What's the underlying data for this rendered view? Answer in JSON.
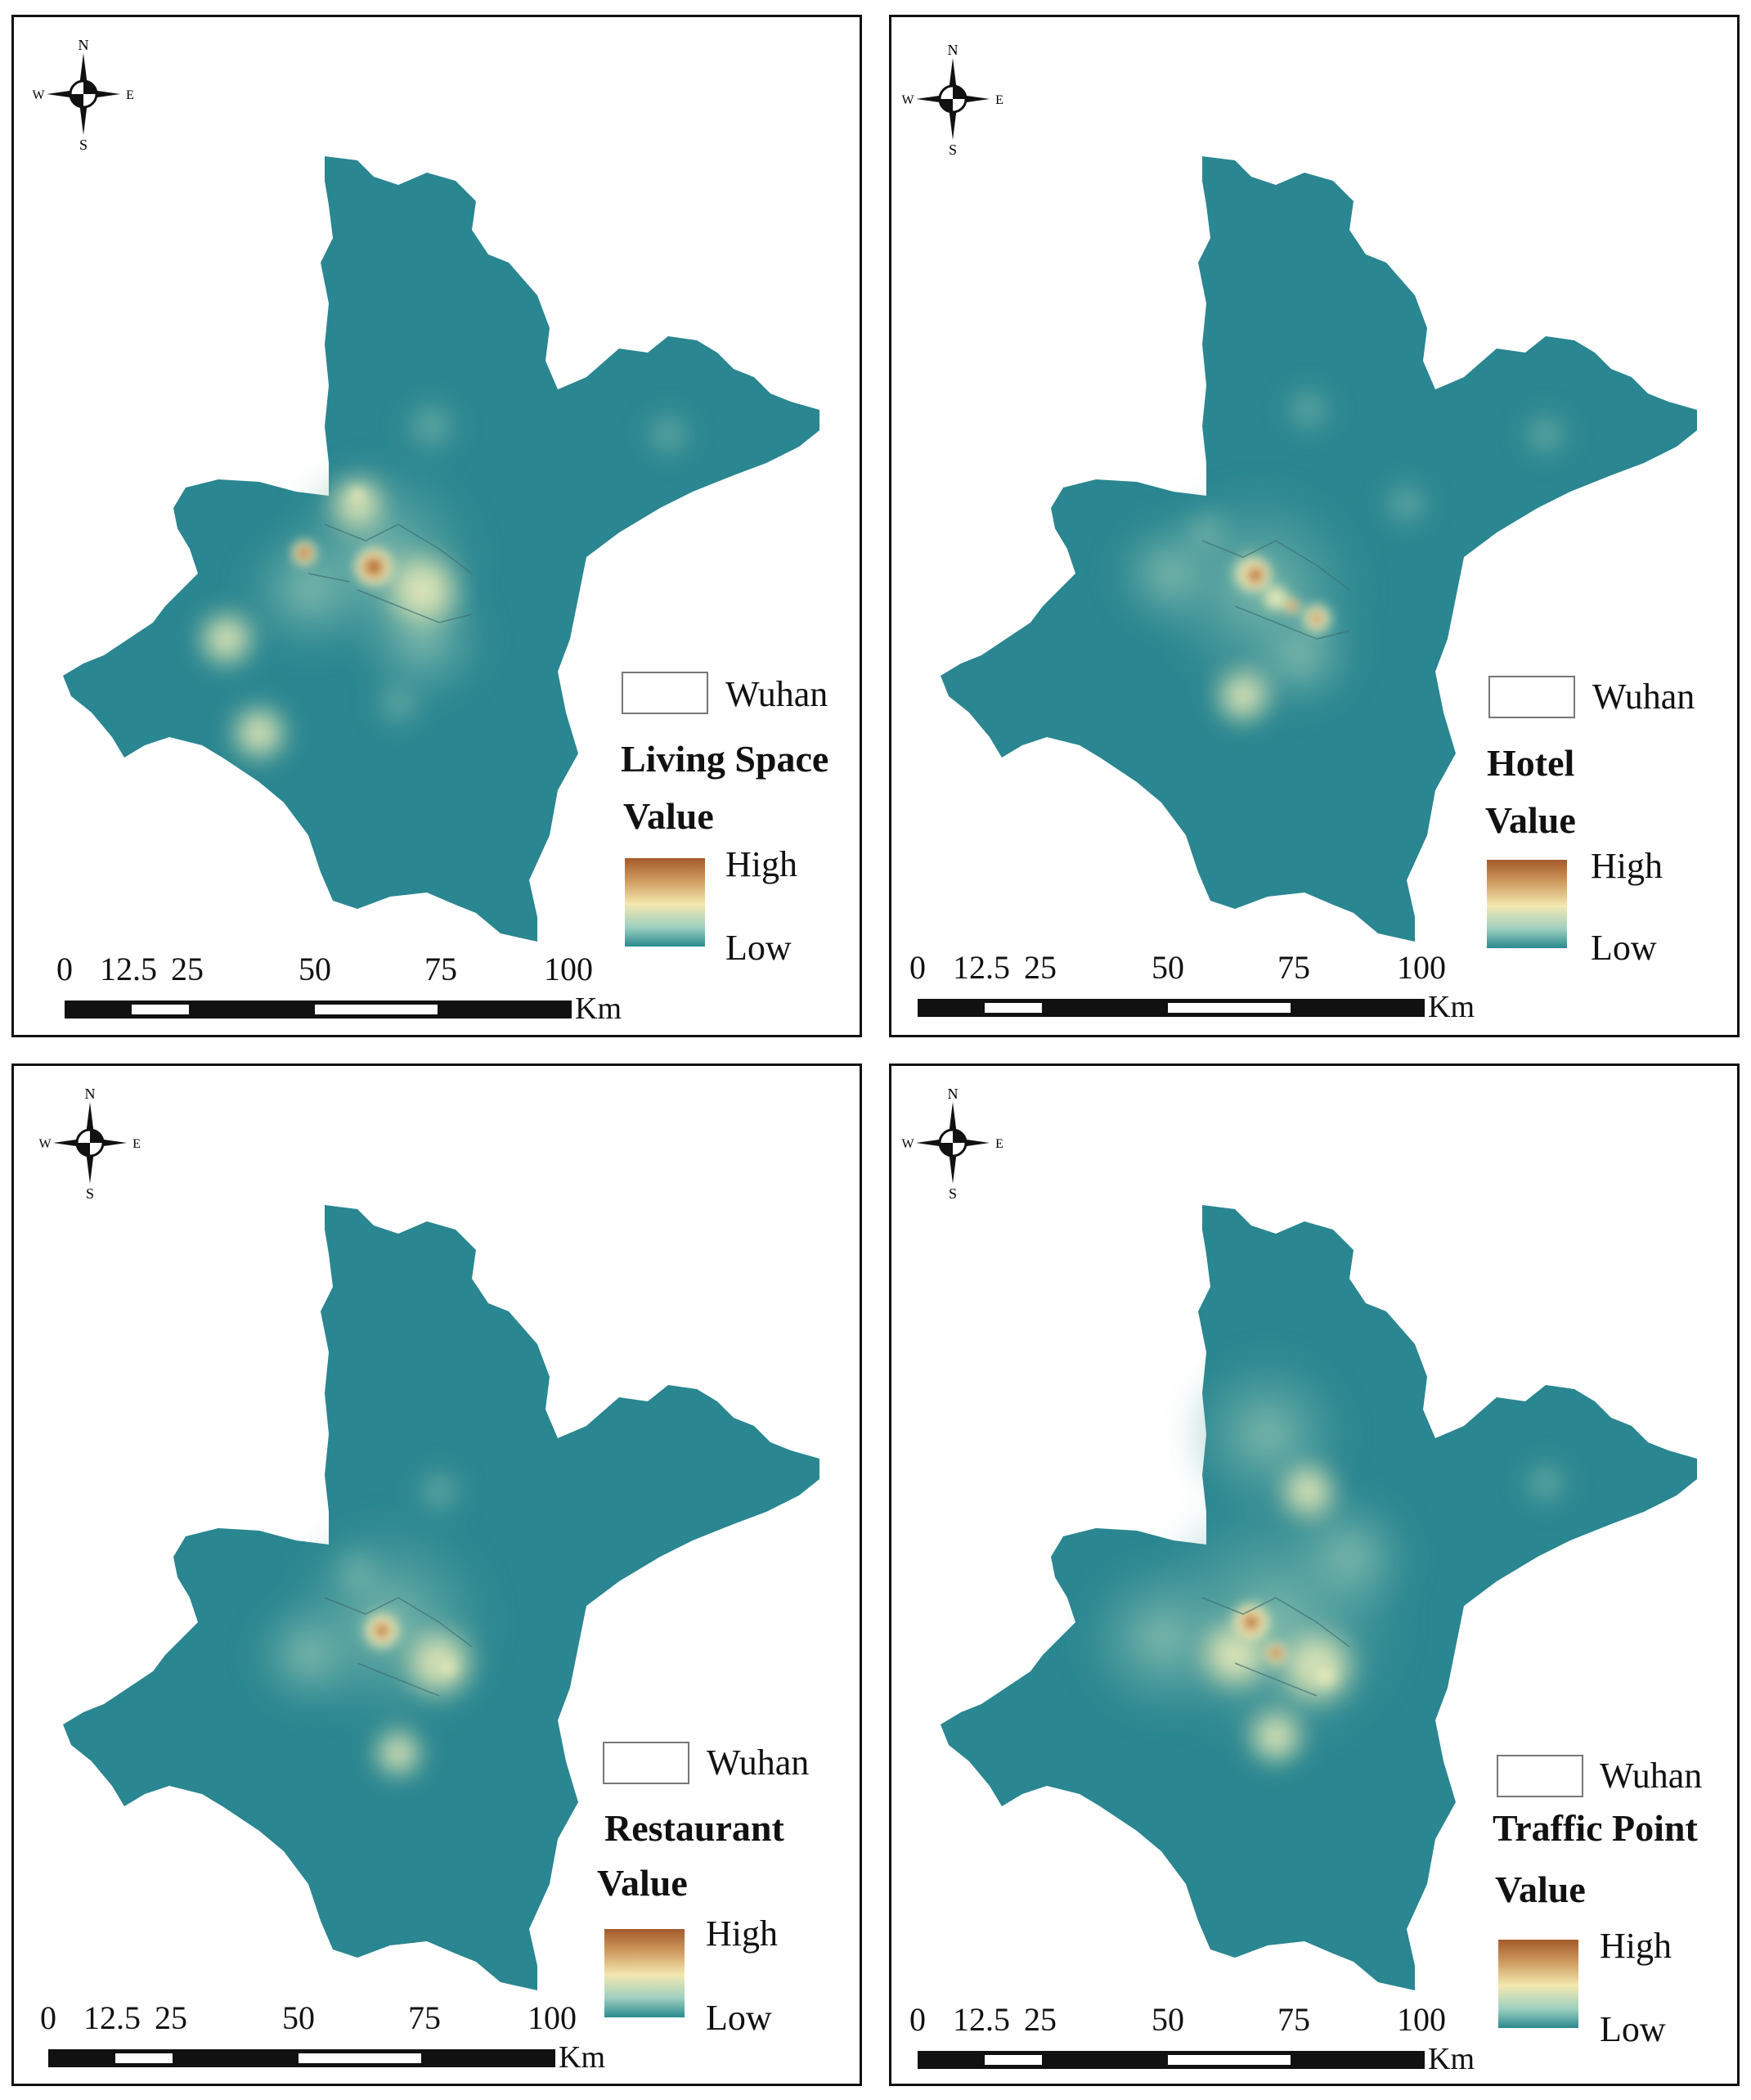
{
  "colors": {
    "map_fill": "#2a8690",
    "ramp_high": "#a35a2a",
    "ramp_mid": "#f3e8b0",
    "ramp_low": "#2a8a8e"
  },
  "compass": {
    "n": "N",
    "s": "S",
    "e": "E",
    "w": "W"
  },
  "panels": [
    {
      "legend_name": "Wuhan",
      "legend_title": "Living Space",
      "legend_value": "Value",
      "high": "High",
      "low": "Low"
    },
    {
      "legend_name": "Wuhan",
      "legend_title": "Hotel",
      "legend_value": "Value",
      "high": "High",
      "low": "Low"
    },
    {
      "legend_name": "Wuhan",
      "legend_title": "Restaurant",
      "legend_value": "Value",
      "high": "High",
      "low": "Low"
    },
    {
      "legend_name": "Wuhan",
      "legend_title": "Traffic Point",
      "legend_value": "Value",
      "high": "High",
      "low": "Low"
    }
  ],
  "scale_bar": {
    "ticks": [
      "0",
      "12.5",
      "25",
      "50",
      "75",
      "100"
    ],
    "unit": "Km"
  }
}
